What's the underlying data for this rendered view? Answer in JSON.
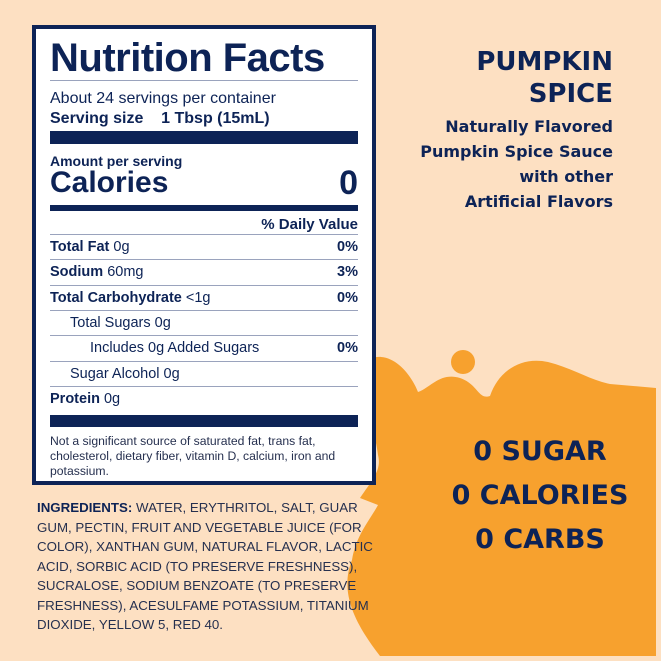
{
  "colors": {
    "background": "#fde0c2",
    "accent_orange": "#f7a12e",
    "navy": "#0d2356"
  },
  "nutrition": {
    "title": "Nutrition Facts",
    "servings": "About 24 servings per container",
    "serving_size_label": "Serving size",
    "serving_size_value": "1 Tbsp (15mL)",
    "amount_per_serving": "Amount per serving",
    "calories_label": "Calories",
    "calories_value": "0",
    "daily_value_header": "% Daily Value",
    "rows": [
      {
        "name": "Total Fat",
        "amount": "0g",
        "dv": "0%"
      },
      {
        "name": "Sodium",
        "amount": "60mg",
        "dv": "3%"
      },
      {
        "name": "Total Carbohydrate",
        "amount": "<1g",
        "dv": "0%"
      },
      {
        "name": "",
        "amount": "Total Sugars 0g",
        "dv": ""
      },
      {
        "name": "",
        "amount": "Includes 0g Added Sugars",
        "dv": "0%"
      },
      {
        "name": "",
        "amount": "Sugar Alcohol 0g",
        "dv": ""
      },
      {
        "name": "Protein",
        "amount": "0g",
        "dv": ""
      }
    ],
    "footnote": "Not a significant source of saturated fat, trans fat, cholesterol, dietary fiber, vitamin D, calcium, iron and potassium."
  },
  "ingredients": {
    "label": "INGREDIENTS:",
    "text": "WATER, ERYTHRITOL, SALT, GUAR GUM, PECTIN, FRUIT AND VEGETABLE JUICE (FOR COLOR), XANTHAN GUM, NATURAL FLAVOR, LACTIC ACID, SORBIC ACID (TO PRESERVE FRESHNESS), SUCRALOSE, SODIUM BENZOATE (TO PRESERVE FRESHNESS), ACESULFAME POTASSIUM, TITANIUM DIOXIDE, YELLOW 5, RED 40."
  },
  "product": {
    "name_line1": "PUMPKIN",
    "name_line2": "SPICE",
    "desc": [
      "Naturally Flavored",
      "Pumpkin Spice Sauce",
      "with other",
      "Artificial Flavors"
    ]
  },
  "claims": [
    "0 SUGAR",
    "0 CALORIES",
    "0 CARBS"
  ]
}
